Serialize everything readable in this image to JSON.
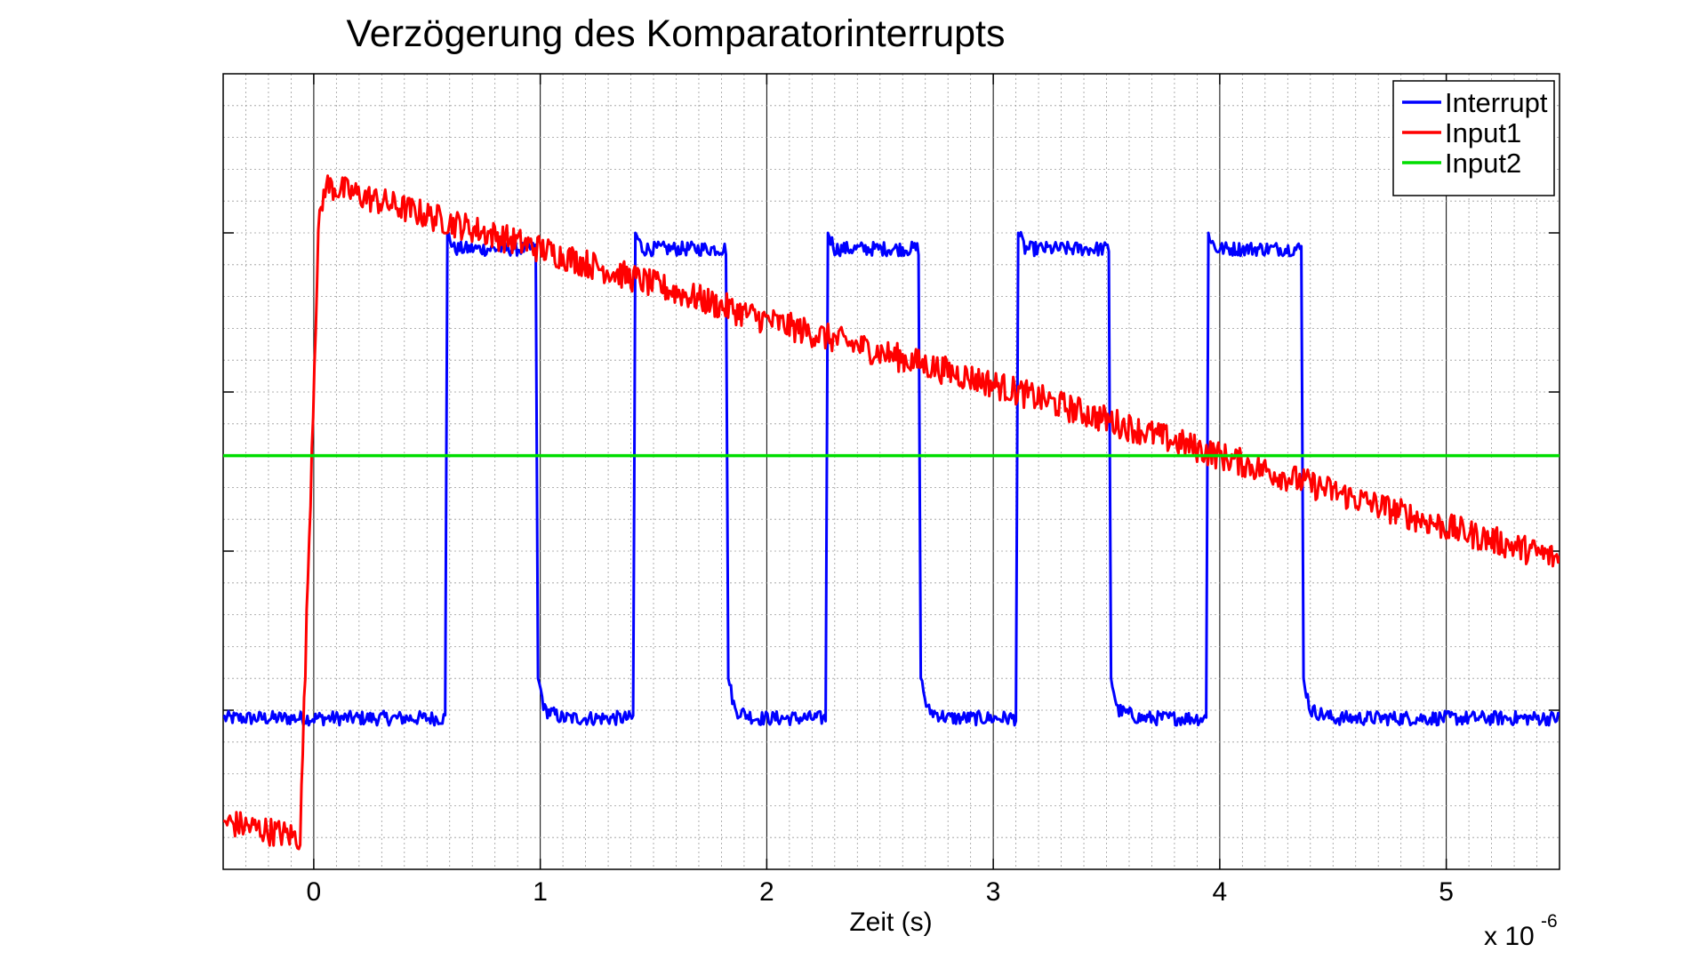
{
  "chart_data": {
    "type": "line",
    "title": "Verzögerung des Komparatorinterrupts",
    "xlabel": "Zeit (s)",
    "ylabel": "",
    "x_multiplier": "x 10",
    "x_multiplier_exp": "-6",
    "xlim": [
      -0.4,
      5.5
    ],
    "ylim": [
      0,
      100
    ],
    "xticks": [
      0,
      1,
      2,
      3,
      4,
      5
    ],
    "xtick_labels": [
      "0",
      "1",
      "2",
      "3",
      "4",
      "5"
    ],
    "grid": true,
    "legend_position": "top-right",
    "series": [
      {
        "name": "Interrupt",
        "color": "#0000ff",
        "x": [
          -0.4,
          0.58,
          0.59,
          0.62,
          0.98,
          0.99,
          1.02,
          1.1,
          1.41,
          1.42,
          1.45,
          1.55,
          1.82,
          1.83,
          1.86,
          1.95,
          2.26,
          2.27,
          2.3,
          2.4,
          2.67,
          2.68,
          2.71,
          2.8,
          3.1,
          3.11,
          3.14,
          3.24,
          3.51,
          3.52,
          3.55,
          3.65,
          3.94,
          3.95,
          3.98,
          4.08,
          4.36,
          4.37,
          4.4,
          4.5,
          5.5
        ],
        "y": [
          19,
          19,
          80,
          78,
          78,
          24,
          20,
          19,
          19,
          80,
          78,
          78,
          78,
          24,
          20,
          19,
          19,
          80,
          78,
          78,
          78,
          24,
          20,
          19,
          19,
          80,
          78,
          78,
          78,
          24,
          20,
          19,
          19,
          80,
          78,
          78,
          78,
          24,
          20,
          19,
          19
        ]
      },
      {
        "name": "Input1",
        "color": "#ff0000",
        "x": [
          -0.4,
          -0.06,
          0.02,
          0.05,
          1,
          2,
          3,
          4,
          5,
          5.5
        ],
        "y": [
          6,
          4,
          80,
          86,
          78,
          69,
          61,
          52,
          43,
          39
        ]
      },
      {
        "name": "Input2",
        "color": "#00dd00",
        "x": [
          -0.4,
          5.5
        ],
        "y": [
          52,
          52
        ]
      }
    ]
  }
}
